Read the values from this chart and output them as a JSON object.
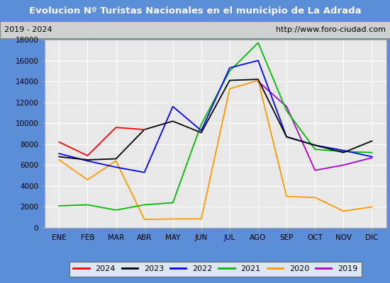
{
  "title": "Evolucion Nº Turistas Nacionales en el municipio de La Adrada",
  "subtitle_left": "2019 - 2024",
  "subtitle_right": "http://www.foro-ciudad.com",
  "months": [
    "ENE",
    "FEB",
    "MAR",
    "ABR",
    "MAY",
    "JUN",
    "JUL",
    "AGO",
    "SEP",
    "OCT",
    "NOV",
    "DIC"
  ],
  "series": {
    "2024": {
      "color": "#ff0000",
      "values": [
        8200,
        6900,
        9600,
        9400,
        null,
        null,
        null,
        null,
        null,
        null,
        null,
        null
      ]
    },
    "2023": {
      "color": "#000000",
      "values": [
        6800,
        6500,
        6600,
        9400,
        10200,
        9100,
        14100,
        14200,
        8700,
        7900,
        7200,
        8300
      ]
    },
    "2022": {
      "color": "#0000ff",
      "values": [
        7100,
        6400,
        5800,
        5300,
        11600,
        9300,
        15300,
        16000,
        8700,
        7900,
        7400,
        6800
      ]
    },
    "2021": {
      "color": "#00bb00",
      "values": [
        2100,
        2200,
        1700,
        2200,
        2400,
        9900,
        15000,
        17700,
        11200,
        7500,
        7300,
        7200
      ]
    },
    "2020": {
      "color": "#ff9900",
      "values": [
        6500,
        4600,
        6400,
        800,
        850,
        850,
        13300,
        14100,
        3000,
        2900,
        1600,
        2000
      ]
    },
    "2019": {
      "color": "#aa00cc",
      "values": [
        null,
        null,
        null,
        null,
        null,
        null,
        null,
        14000,
        11600,
        5500,
        6000,
        6700
      ]
    }
  },
  "ylim": [
    0,
    18000
  ],
  "yticks": [
    0,
    2000,
    4000,
    6000,
    8000,
    10000,
    12000,
    14000,
    16000,
    18000
  ],
  "plot_bg_color": "#e8e8e8",
  "background_color": "#ffffff",
  "title_bg_color": "#5b8dd9",
  "title_color": "#ffffff",
  "grid_color": "#ffffff",
  "border_color": "#5b8dd9",
  "subtitle_bg": "#d0d0d0"
}
